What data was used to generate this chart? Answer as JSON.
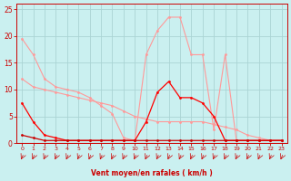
{
  "background_color": "#caf0f0",
  "grid_color": "#aad4d4",
  "xlabel": "Vent moyen/en rafales ( km/h )",
  "xlabel_color": "#cc0000",
  "tick_color": "#cc0000",
  "xlim": [
    -0.5,
    23.5
  ],
  "ylim": [
    0,
    26
  ],
  "yticks": [
    0,
    5,
    10,
    15,
    20,
    25
  ],
  "xticks": [
    0,
    1,
    2,
    3,
    4,
    5,
    6,
    7,
    8,
    9,
    10,
    11,
    12,
    13,
    14,
    15,
    16,
    17,
    18,
    19,
    20,
    21,
    22,
    23
  ],
  "series": [
    {
      "x": [
        0,
        1,
        2,
        3,
        4,
        5,
        6,
        7,
        8,
        9,
        10,
        11,
        12,
        13,
        14,
        15,
        16,
        17,
        18,
        19,
        20,
        21,
        22,
        23
      ],
      "y": [
        19.5,
        16.5,
        12.0,
        10.5,
        10.0,
        9.5,
        8.5,
        7.0,
        5.5,
        1.0,
        0.5,
        16.5,
        21.0,
        23.5,
        23.5,
        16.5,
        16.5,
        2.5,
        16.5,
        0.5,
        0.5,
        0.5,
        0.5,
        0.5
      ],
      "color": "#ff9999",
      "lw": 0.8,
      "ms": 2.0
    },
    {
      "x": [
        0,
        1,
        2,
        3,
        4,
        5,
        6,
        7,
        8,
        9,
        10,
        11,
        12,
        13,
        14,
        15,
        16,
        17,
        18,
        19,
        20,
        21,
        22,
        23
      ],
      "y": [
        12.0,
        10.5,
        10.0,
        9.5,
        9.0,
        8.5,
        8.0,
        7.5,
        7.0,
        6.0,
        5.0,
        4.5,
        4.0,
        4.0,
        4.0,
        4.0,
        4.0,
        3.5,
        3.0,
        2.5,
        1.5,
        1.0,
        0.5,
        0.5
      ],
      "color": "#ff9999",
      "lw": 0.8,
      "ms": 2.0
    },
    {
      "x": [
        0,
        1,
        2,
        3,
        4,
        5,
        6,
        7,
        8,
        9,
        10,
        11,
        12,
        13,
        14,
        15,
        16,
        17,
        18,
        19,
        20,
        21,
        22,
        23
      ],
      "y": [
        7.5,
        4.0,
        1.5,
        1.0,
        0.5,
        0.5,
        0.5,
        0.5,
        0.5,
        0.5,
        0.5,
        4.0,
        9.5,
        11.5,
        8.5,
        8.5,
        7.5,
        5.0,
        0.5,
        0.5,
        0.5,
        0.5,
        0.5,
        0.5
      ],
      "color": "#ff0000",
      "lw": 0.9,
      "ms": 2.0
    },
    {
      "x": [
        0,
        1,
        2,
        3,
        4,
        5,
        6,
        7,
        8,
        9,
        10,
        11,
        12,
        13,
        14,
        15,
        16,
        17,
        18,
        19,
        20,
        21,
        22,
        23
      ],
      "y": [
        1.5,
        1.0,
        0.5,
        0.5,
        0.5,
        0.5,
        0.5,
        0.5,
        0.5,
        0.5,
        0.5,
        0.5,
        0.5,
        0.5,
        0.5,
        0.5,
        0.5,
        0.5,
        0.5,
        0.5,
        0.5,
        0.5,
        0.5,
        0.5
      ],
      "color": "#cc0000",
      "lw": 0.9,
      "ms": 2.0
    }
  ],
  "wind_arrows_x": [
    0,
    1,
    2,
    3,
    4,
    5,
    6,
    7,
    8,
    9,
    10,
    11,
    12,
    13,
    14,
    15,
    16,
    17,
    18,
    19,
    20,
    21,
    22,
    23
  ]
}
